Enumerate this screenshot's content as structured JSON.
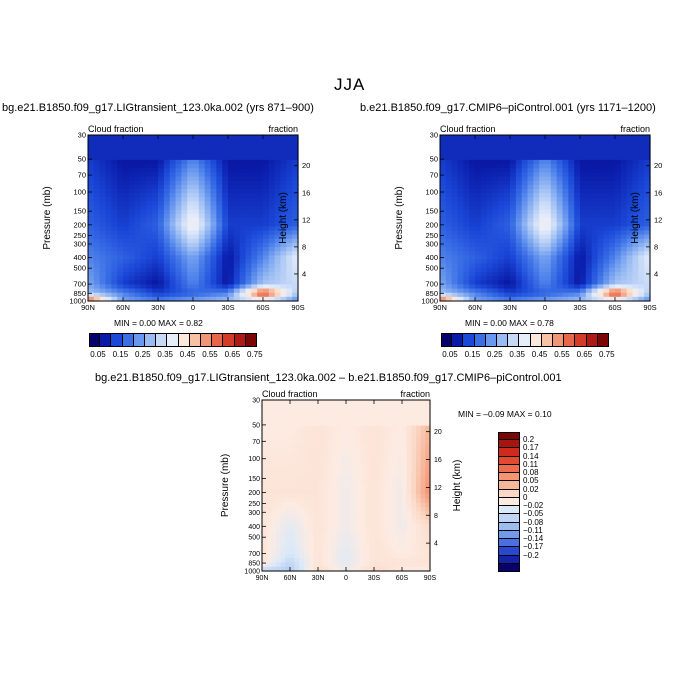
{
  "title": "JJA",
  "panels": [
    {
      "title": "bg.e21.B1850.f09_g17.LIGtransient_123.0ka.002 (yrs 871–900)",
      "var_label": "Cloud fraction",
      "var_label_right": "fraction",
      "min_max": "MIN =    0.00    MAX =    0.82"
    },
    {
      "title": "b.e21.B1850.f09_g17.CMIP6–piControl.001 (yrs 1171–1200)",
      "var_label": "Cloud fraction",
      "var_label_right": "fraction",
      "min_max": "MIN =    0.00    MAX =    0.78"
    },
    {
      "title": "bg.e21.B1850.f09_g17.LIGtransient_123.0ka.002 – b.e21.B1850.f09_g17.CMIP6–piControl.001",
      "var_label": "Cloud fraction",
      "var_label_right": "fraction",
      "min_max": "MIN =  –0.09    MAX =    0.10"
    }
  ],
  "axes": {
    "ylabel": "Pressure (mb)",
    "y2label": "Height (km)"
  },
  "colorbar_abs": {
    "labels": [
      "0.05",
      "0.15",
      "0.25",
      "0.35",
      "0.45",
      "0.55",
      "0.65",
      "0.75"
    ],
    "colors": [
      "#08006b",
      "#0a1aa8",
      "#1b48d8",
      "#3a6fe6",
      "#6a98ef",
      "#99bbf3",
      "#c6d9f7",
      "#e7eefb",
      "#fde8dc",
      "#f8c1a6",
      "#f29576",
      "#e8674b",
      "#d43c2a",
      "#b01a14",
      "#7a0606"
    ]
  },
  "colorbar_diff": {
    "labels": [
      "0.2",
      "0.17",
      "0.14",
      "0.11",
      "0.08",
      "0.05",
      "0.02",
      "0",
      "−0.02",
      "−0.05",
      "−0.08",
      "−0.11",
      "−0.14",
      "−0.17",
      "−0.2"
    ],
    "colors": [
      "#7a0606",
      "#a81410",
      "#cf2a1c",
      "#e2492e",
      "#ee6c4e",
      "#f49473",
      "#f7b79b",
      "#fbd8c6",
      "#fdebe2",
      "#dce9f8",
      "#c0d5f4",
      "#9cbcf0",
      "#7399ea",
      "#4a6fe2",
      "#2a47cf",
      "#1623a8",
      "#08006b"
    ]
  },
  "chart_data": [
    {
      "type": "heatmap",
      "title": "bg.e21.B1850.f09_g17.LIGtransient_123.0ka.002 (yrs 871–900)",
      "variable": "Cloud fraction",
      "ylabel": "Pressure (mb)",
      "y2label": "Height (km)",
      "x_ticks": [
        "90N",
        "60N",
        "30N",
        "0",
        "30S",
        "60S",
        "90S"
      ],
      "y_ticks": [
        "30",
        "50",
        "70",
        "100",
        "150",
        "200",
        "250",
        "300",
        "400",
        "500",
        "700",
        "850",
        "1000"
      ],
      "y2_ticks": [
        "20",
        "16",
        "12",
        "8",
        "4"
      ],
      "ylim": [
        1000,
        30
      ],
      "min": 0.0,
      "max": 0.82,
      "x_lat": [
        90,
        60,
        30,
        0,
        -30,
        -60,
        -90
      ],
      "levels_mb": [
        50,
        200,
        400,
        700,
        850,
        1000
      ],
      "values": [
        [
          0.1,
          0.05,
          0.05,
          0.2,
          0.05,
          0.05,
          0.1
        ],
        [
          0.15,
          0.1,
          0.15,
          0.45,
          0.1,
          0.1,
          0.15
        ],
        [
          0.2,
          0.15,
          0.1,
          0.25,
          0.05,
          0.2,
          0.4
        ],
        [
          0.25,
          0.1,
          0.05,
          0.2,
          0.05,
          0.3,
          0.35
        ],
        [
          0.3,
          0.2,
          0.1,
          0.15,
          0.2,
          0.7,
          0.3
        ],
        [
          0.7,
          0.25,
          0.2,
          0.25,
          0.3,
          0.35,
          0.2
        ]
      ]
    },
    {
      "type": "heatmap",
      "title": "b.e21.B1850.f09_g17.CMIP6–piControl.001 (yrs 1171–1200)",
      "variable": "Cloud fraction",
      "ylabel": "Pressure (mb)",
      "y2label": "Height (km)",
      "x_ticks": [
        "90N",
        "60N",
        "30N",
        "0",
        "30S",
        "60S",
        "90S"
      ],
      "y_ticks": [
        "30",
        "50",
        "70",
        "100",
        "150",
        "200",
        "250",
        "300",
        "400",
        "500",
        "700",
        "850",
        "1000"
      ],
      "y2_ticks": [
        "20",
        "16",
        "12",
        "8",
        "4"
      ],
      "ylim": [
        1000,
        30
      ],
      "min": 0.0,
      "max": 0.78,
      "x_lat": [
        90,
        60,
        30,
        0,
        -30,
        -60,
        -90
      ],
      "levels_mb": [
        50,
        200,
        400,
        700,
        850,
        1000
      ],
      "values": [
        [
          0.1,
          0.05,
          0.05,
          0.2,
          0.05,
          0.05,
          0.1
        ],
        [
          0.15,
          0.1,
          0.15,
          0.45,
          0.1,
          0.1,
          0.15
        ],
        [
          0.2,
          0.15,
          0.1,
          0.25,
          0.05,
          0.2,
          0.4
        ],
        [
          0.25,
          0.1,
          0.05,
          0.2,
          0.05,
          0.3,
          0.35
        ],
        [
          0.3,
          0.2,
          0.1,
          0.15,
          0.2,
          0.7,
          0.3
        ],
        [
          0.7,
          0.25,
          0.2,
          0.25,
          0.3,
          0.35,
          0.2
        ]
      ]
    },
    {
      "type": "heatmap",
      "title": "bg.e21.B1850.f09_g17.LIGtransient_123.0ka.002 – b.e21.B1850.f09_g17.CMIP6–piControl.001",
      "variable": "Cloud fraction",
      "ylabel": "Pressure (mb)",
      "y2label": "Height (km)",
      "x_ticks": [
        "90N",
        "60N",
        "30N",
        "0",
        "30S",
        "60S",
        "90S"
      ],
      "y_ticks": [
        "30",
        "50",
        "70",
        "100",
        "150",
        "200",
        "250",
        "300",
        "400",
        "500",
        "700",
        "850",
        "1000"
      ],
      "y2_ticks": [
        "20",
        "16",
        "12",
        "8",
        "4"
      ],
      "ylim": [
        1000,
        30
      ],
      "min": -0.09,
      "max": 0.1,
      "x_lat": [
        90,
        60,
        30,
        0,
        -30,
        -60,
        -90
      ],
      "levels_mb": [
        50,
        200,
        400,
        700,
        850,
        1000
      ],
      "values": [
        [
          0.0,
          0.0,
          0.01,
          0.0,
          0.01,
          0.0,
          0.05
        ],
        [
          0.01,
          0.01,
          0.01,
          -0.01,
          0.01,
          -0.01,
          0.08
        ],
        [
          0.01,
          -0.02,
          0.01,
          -0.01,
          0.01,
          -0.01,
          0.02
        ],
        [
          0.01,
          -0.03,
          0.01,
          -0.02,
          0.01,
          0.0,
          0.01
        ],
        [
          0.01,
          -0.05,
          0.01,
          -0.02,
          0.01,
          0.01,
          0.01
        ],
        [
          -0.05,
          -0.06,
          0.02,
          -0.01,
          0.02,
          0.0,
          0.0
        ]
      ]
    }
  ]
}
